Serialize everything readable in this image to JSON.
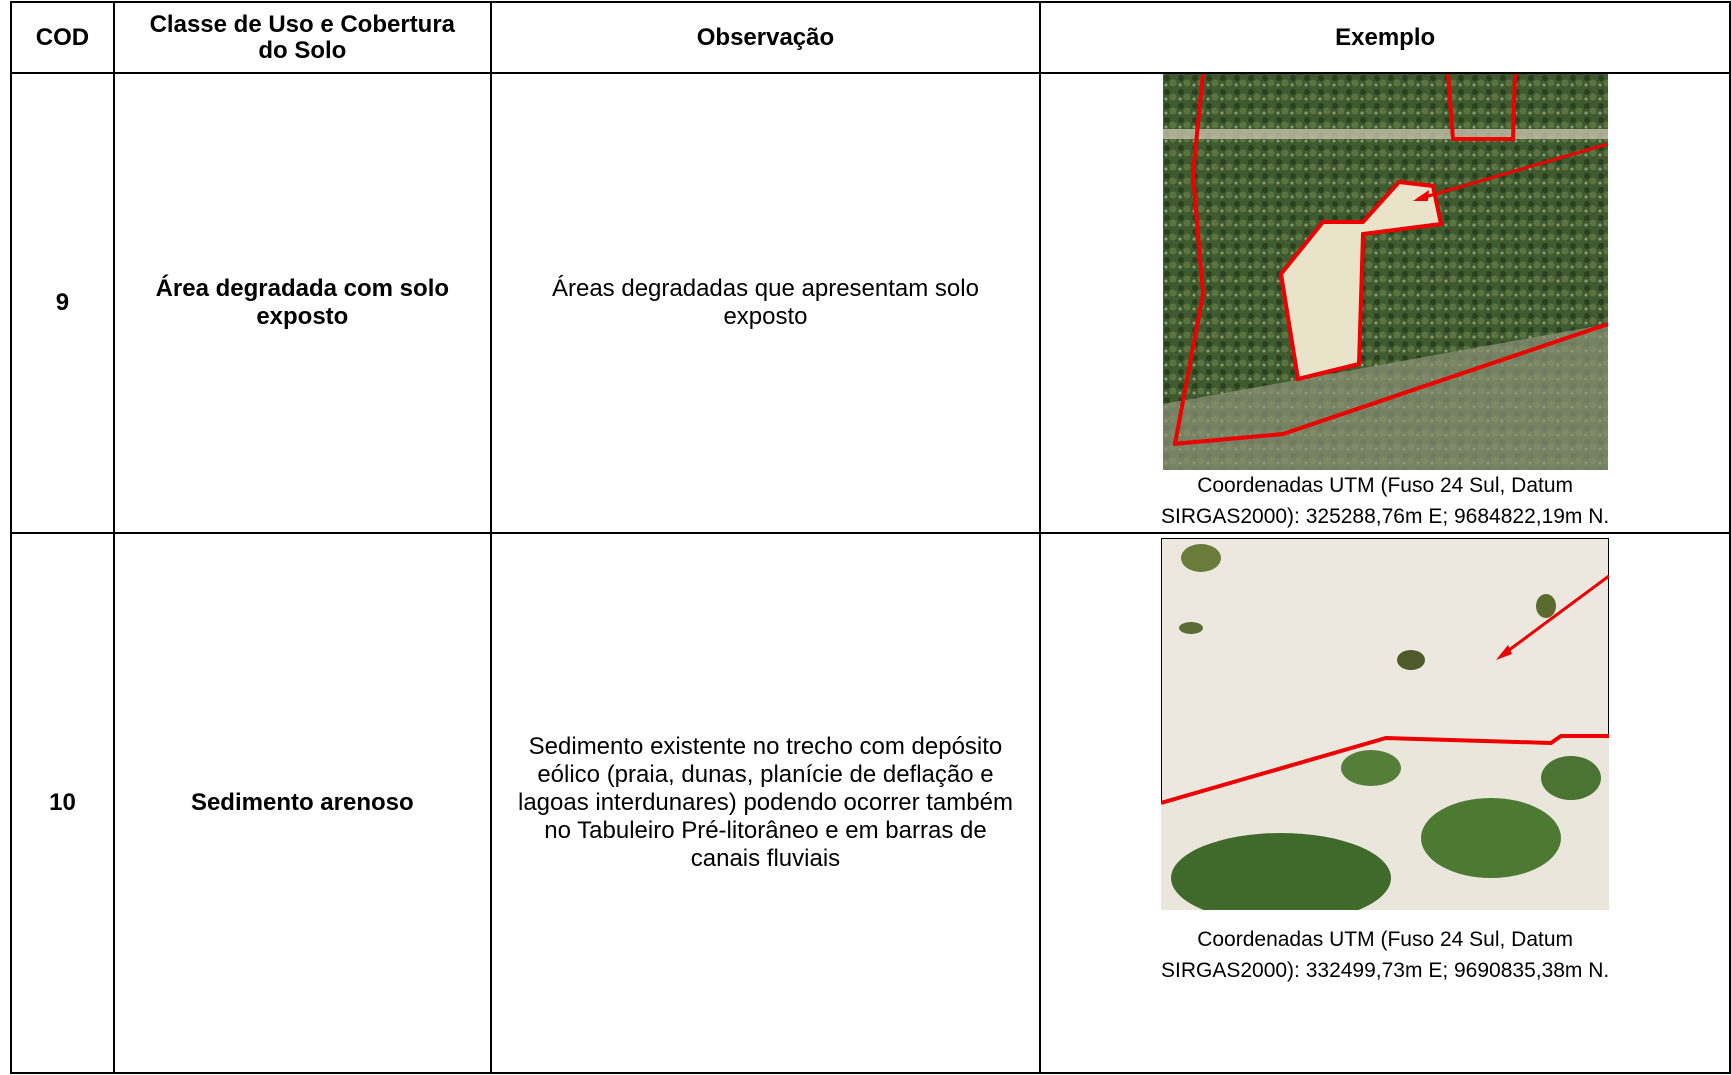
{
  "table": {
    "headers": [
      "COD",
      "Classe de Uso e Cobertura do Solo",
      "Observação",
      "Exemplo"
    ],
    "rows": [
      {
        "cod": "9",
        "classe": "Área degradada com solo exposto",
        "observacao": "Áreas degradadas que apresentam solo exposto",
        "caption": [
          "Coordenadas UTM (Fuso 24 Sul, Datum",
          "SIRGAS2000): 325288,76m E; 9684822,19m N."
        ]
      },
      {
        "cod": "10",
        "classe": "Sedimento arenoso",
        "observacao": "Sedimento existente no trecho com depósito eólico (praia, dunas, planície de deflação e lagoas interdunares) podendo ocorrer também no Tabuleiro Pré-litorâneo e em barras de canais fluviais",
        "caption": [
          "Coordenadas UTM (Fuso 24 Sul, Datum",
          "SIRGAS2000): 332499,73m E; 9690835,38m N."
        ]
      }
    ]
  }
}
